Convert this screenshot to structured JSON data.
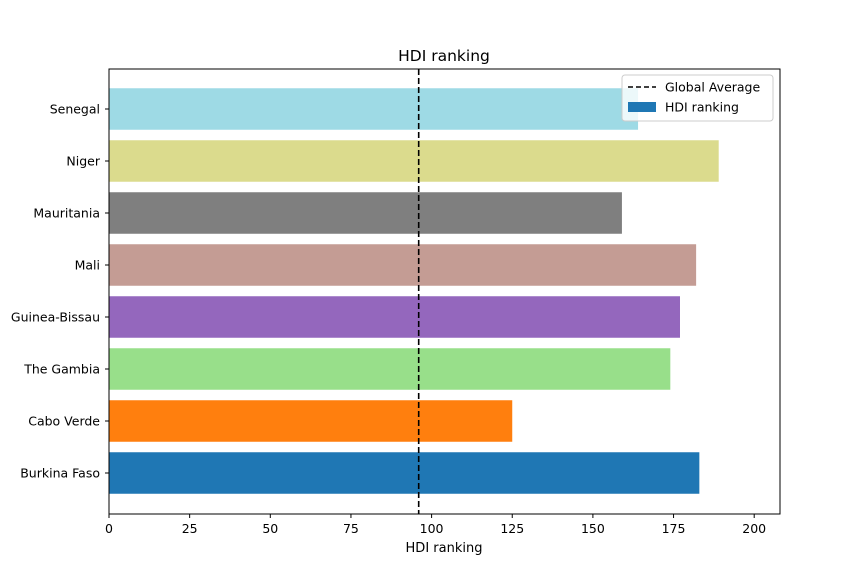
{
  "chart_data": {
    "type": "bar",
    "orientation": "horizontal",
    "title": "HDI ranking",
    "xlabel": "HDI ranking",
    "ylabel": "",
    "xlim": [
      0,
      208
    ],
    "xticks": [
      0,
      25,
      50,
      75,
      100,
      125,
      150,
      175,
      200
    ],
    "grid": false,
    "legend_position": "top-right",
    "categories": [
      "Burkina Faso",
      "Cabo Verde",
      "The Gambia",
      "Guinea-Bissau",
      "Mali",
      "Mauritania",
      "Niger",
      "Senegal"
    ],
    "values": [
      183,
      125,
      174,
      177,
      182,
      159,
      189,
      164
    ],
    "colors": [
      "#1f77b4",
      "#ff7f0e",
      "#98df8a",
      "#9467bd",
      "#c49c94",
      "#7f7f7f",
      "#dbdb8d",
      "#9edae5"
    ],
    "series_name": "HDI ranking",
    "reference_line": {
      "name": "Global Average",
      "value": 96,
      "style": "dashed",
      "color": "#000000"
    },
    "legend": {
      "entries": [
        "Global Average",
        "HDI ranking"
      ],
      "bar_swatch_color": "#1f77b4"
    }
  }
}
